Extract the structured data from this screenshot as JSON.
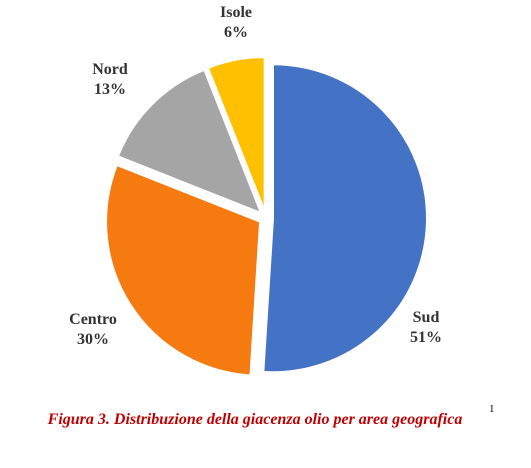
{
  "chart_data": {
    "type": "pie",
    "categories": [
      "Sud",
      "Centro",
      "Nord",
      "Isole"
    ],
    "values": [
      51,
      30,
      13,
      6
    ],
    "value_labels": [
      "51%",
      "30%",
      "13%",
      "6%"
    ],
    "colors": [
      "#4472c4",
      "#f57a10",
      "#a5a5a5",
      "#ffc000"
    ],
    "start_angle": 0,
    "direction": "clockwise",
    "exploded": true
  },
  "caption": {
    "text": "Figura 3. Distribuzione della giacenza olio per area geografica",
    "note": "1"
  }
}
